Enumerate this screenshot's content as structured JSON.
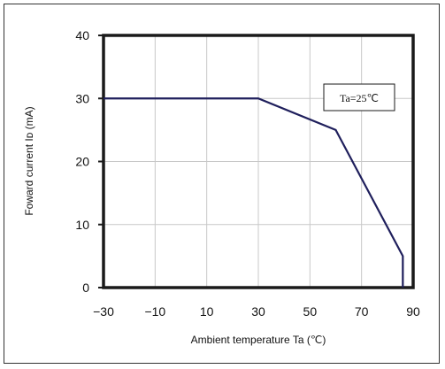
{
  "chart_data": {
    "type": "line",
    "title": "",
    "xlabel": "Ambient temperature Ta (℃)",
    "ylabel": "Foward current Iᴅ (mA)",
    "x_tick_labels": [
      "−30",
      "−10",
      "10",
      "30",
      "50",
      "70",
      "90"
    ],
    "y_tick_labels": [
      "0",
      "10",
      "20",
      "30",
      "40"
    ],
    "ylim": [
      0,
      40
    ],
    "grid": true,
    "legend": "none",
    "annotation": "Ta=25℃",
    "series": [
      {
        "color": "#1f1f5c",
        "points": [
          {
            "x_index": 0,
            "y": 30
          },
          {
            "x_index": 3.0,
            "y": 30
          },
          {
            "x_index": 4.5,
            "y": 25
          },
          {
            "x_index": 5.8,
            "y": 5
          },
          {
            "x_index": 5.8,
            "y": 0
          }
        ]
      }
    ]
  }
}
